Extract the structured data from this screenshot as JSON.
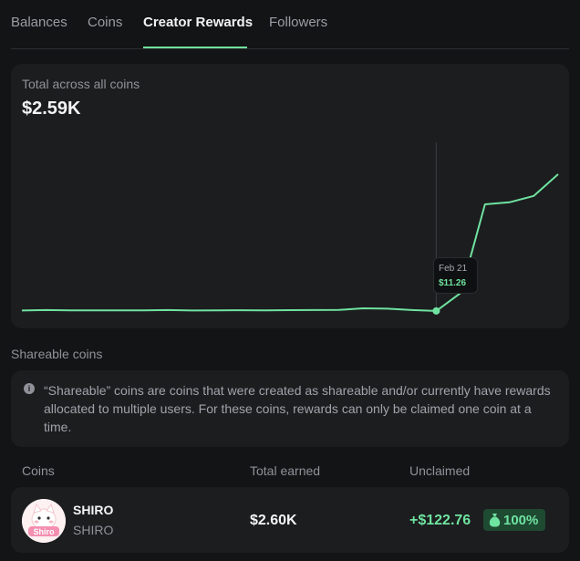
{
  "tabs": [
    {
      "label": "Balances"
    },
    {
      "label": "Coins"
    },
    {
      "label": "Creator Rewards"
    },
    {
      "label": "Followers"
    }
  ],
  "summary": {
    "label": "Total across all coins",
    "value": "$2.59K"
  },
  "chart_data": {
    "type": "line",
    "series": [
      {
        "values": [
          12.5,
          14,
          13,
          12.8,
          13.2,
          13.1,
          13.9,
          12.6,
          12.9,
          13.4,
          13.2,
          13.6,
          13.8,
          14.2,
          19,
          18,
          14,
          11.26,
          65,
          330,
          336,
          355,
          420
        ]
      }
    ],
    "tooltip": {
      "date": "Feb 21",
      "value": "$11.26"
    },
    "highlight_index": 17,
    "color": "#6fe3a0"
  },
  "shareable": {
    "title": "Shareable coins",
    "notice": "“Shareable” coins are coins that were created as shareable and/or currently have rewards allocated to multiple users. For these coins, rewards can only be claimed one coin at a time."
  },
  "table": {
    "headers": {
      "coins": "Coins",
      "earned": "Total earned",
      "unclaimed": "Unclaimed"
    },
    "rows": [
      {
        "name": "SHIRO",
        "symbol": "SHIRO",
        "earned": "$2.60K",
        "unclaimed": "+$122.76",
        "pct": "100%",
        "avatar_text": "Shiro"
      }
    ]
  }
}
